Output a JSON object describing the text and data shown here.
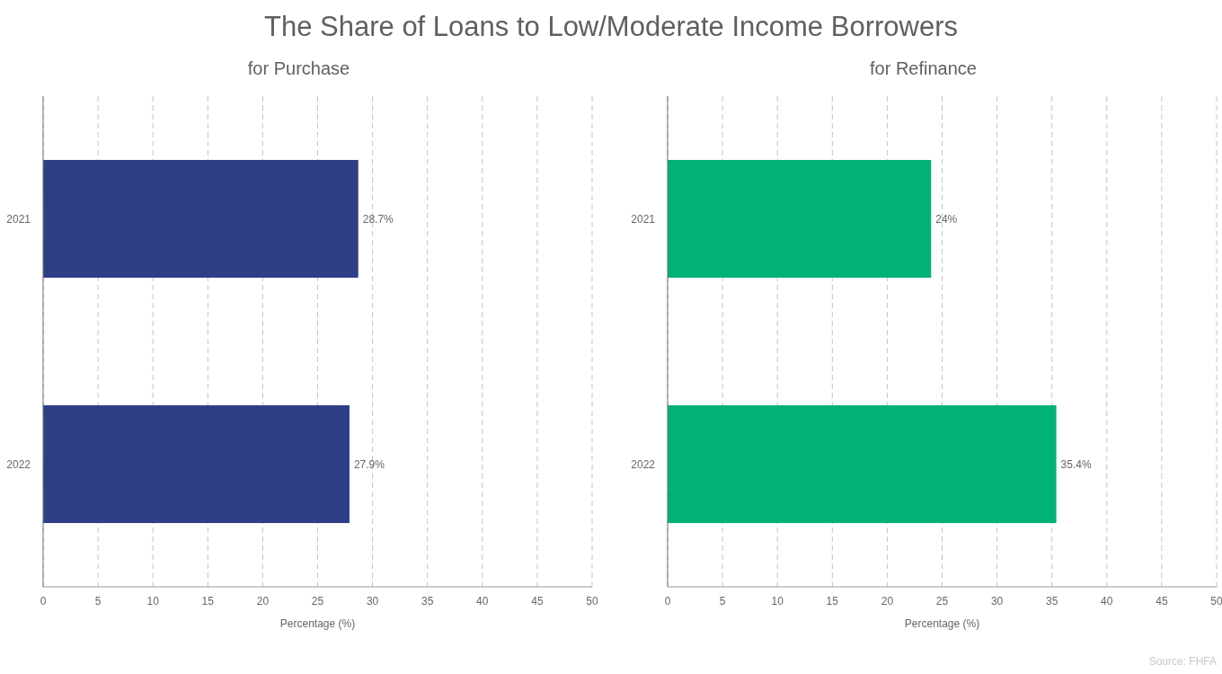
{
  "chart_data": [
    {
      "type": "bar",
      "orientation": "horizontal",
      "title": "The Share of Loans to Low/Moderate Income Borrowers",
      "subtitle": "for Purchase",
      "xlabel": "Percentage (%)",
      "categories": [
        "2021",
        "2022"
      ],
      "values": [
        28.7,
        27.9
      ],
      "value_labels": [
        "28.7%",
        "27.9%"
      ],
      "color": "#2e3f87",
      "xlim": [
        0,
        50
      ],
      "xticks": [
        0,
        5,
        10,
        15,
        20,
        25,
        30,
        35,
        40,
        45,
        50
      ],
      "grid": "x"
    },
    {
      "type": "bar",
      "orientation": "horizontal",
      "subtitle": "for Refinance",
      "xlabel": "Percentage (%)",
      "categories": [
        "2021",
        "2022"
      ],
      "values": [
        24,
        35.4
      ],
      "value_labels": [
        "24%",
        "35.4%"
      ],
      "color": "#00b274",
      "xlim": [
        0,
        50
      ],
      "xticks": [
        0,
        5,
        10,
        15,
        20,
        25,
        30,
        35,
        40,
        45,
        50
      ],
      "grid": "x",
      "annotations": [
        "Source: FHFA"
      ]
    }
  ]
}
